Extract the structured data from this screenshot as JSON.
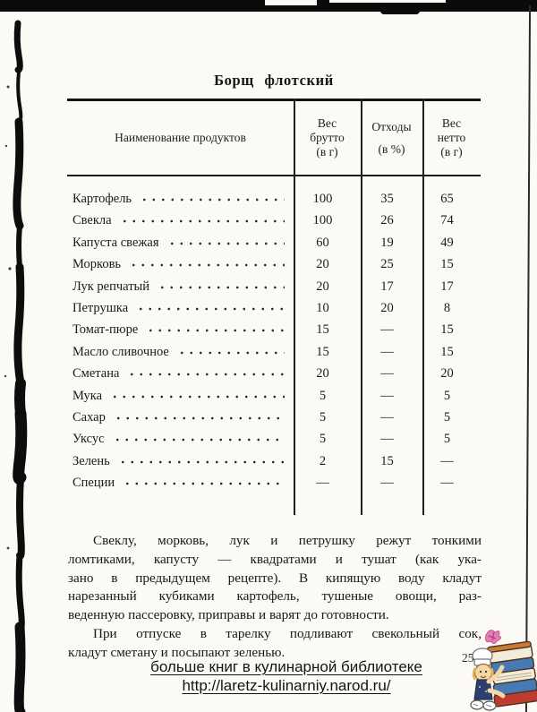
{
  "page": {
    "title": "Борщ флотский",
    "page_number": "25"
  },
  "table": {
    "headers": {
      "name": "Наименование продуктов",
      "gross": [
        "Вес",
        "брутто",
        "(в г)"
      ],
      "waste": [
        "Отходы",
        "(в %)"
      ],
      "net": [
        "Вес",
        "нетто",
        "(в г)"
      ]
    },
    "rows": [
      {
        "name": "Картофель",
        "gross": "100",
        "waste": "35",
        "net": "65"
      },
      {
        "name": "Свекла",
        "gross": "100",
        "waste": "26",
        "net": "74"
      },
      {
        "name": "Капуста свежая",
        "gross": "60",
        "waste": "19",
        "net": "49"
      },
      {
        "name": "Морковь",
        "gross": "20",
        "waste": "25",
        "net": "15"
      },
      {
        "name": "Лук репчатый",
        "gross": "20",
        "waste": "17",
        "net": "17"
      },
      {
        "name": "Петрушка",
        "gross": "10",
        "waste": "20",
        "net": "8"
      },
      {
        "name": "Томат-пюре",
        "gross": "15",
        "waste": "—",
        "net": "15"
      },
      {
        "name": "Масло сливочное",
        "gross": "15",
        "waste": "—",
        "net": "15"
      },
      {
        "name": "Сметана",
        "gross": "20",
        "waste": "—",
        "net": "20"
      },
      {
        "name": "Мука",
        "gross": "5",
        "waste": "—",
        "net": "5"
      },
      {
        "name": "Сахар",
        "gross": "5",
        "waste": "—",
        "net": "5"
      },
      {
        "name": "Уксус",
        "gross": "5",
        "waste": "—",
        "net": "5"
      },
      {
        "name": "Зелень",
        "gross": "2",
        "waste": "15",
        "net": "—"
      },
      {
        "name": "Специи",
        "gross": "—",
        "waste": "—",
        "net": "—"
      }
    ]
  },
  "body": {
    "paragraphs": [
      {
        "lines": [
          "Свеклу, морковь, лук и петрушку режут тонкими",
          "ломтиками, капусту — квадратами и тушат (как ука-",
          "зано в предыдущем рецепте). В кипящую воду кладут",
          "нарезанный кубиками картофель, тушеные овощи, раз-",
          "веденную пассеровку, приправы и варят до готовности."
        ]
      },
      {
        "lines": [
          "При отпуске в тарелку подливают свекольный сок,",
          "кладут сметану и посыпают зеленью."
        ]
      }
    ]
  },
  "footer": {
    "caption": "больше книг в кулинарной библиотеке",
    "link": "http://laretz-kulinarniy.narod.ru/"
  },
  "icons": {
    "mascot": "chef-carrying-stack-of-books",
    "doodle": "pink-scribble"
  },
  "colors": {
    "paper": "#fbfaf5",
    "ink": "#1b1b1b",
    "book_red": "#bf3a2f",
    "book_blue": "#4779b2",
    "book_cream": "#f3ecd9",
    "book_orange": "#cc7a2e",
    "doodle_pink": "#e170ab"
  }
}
